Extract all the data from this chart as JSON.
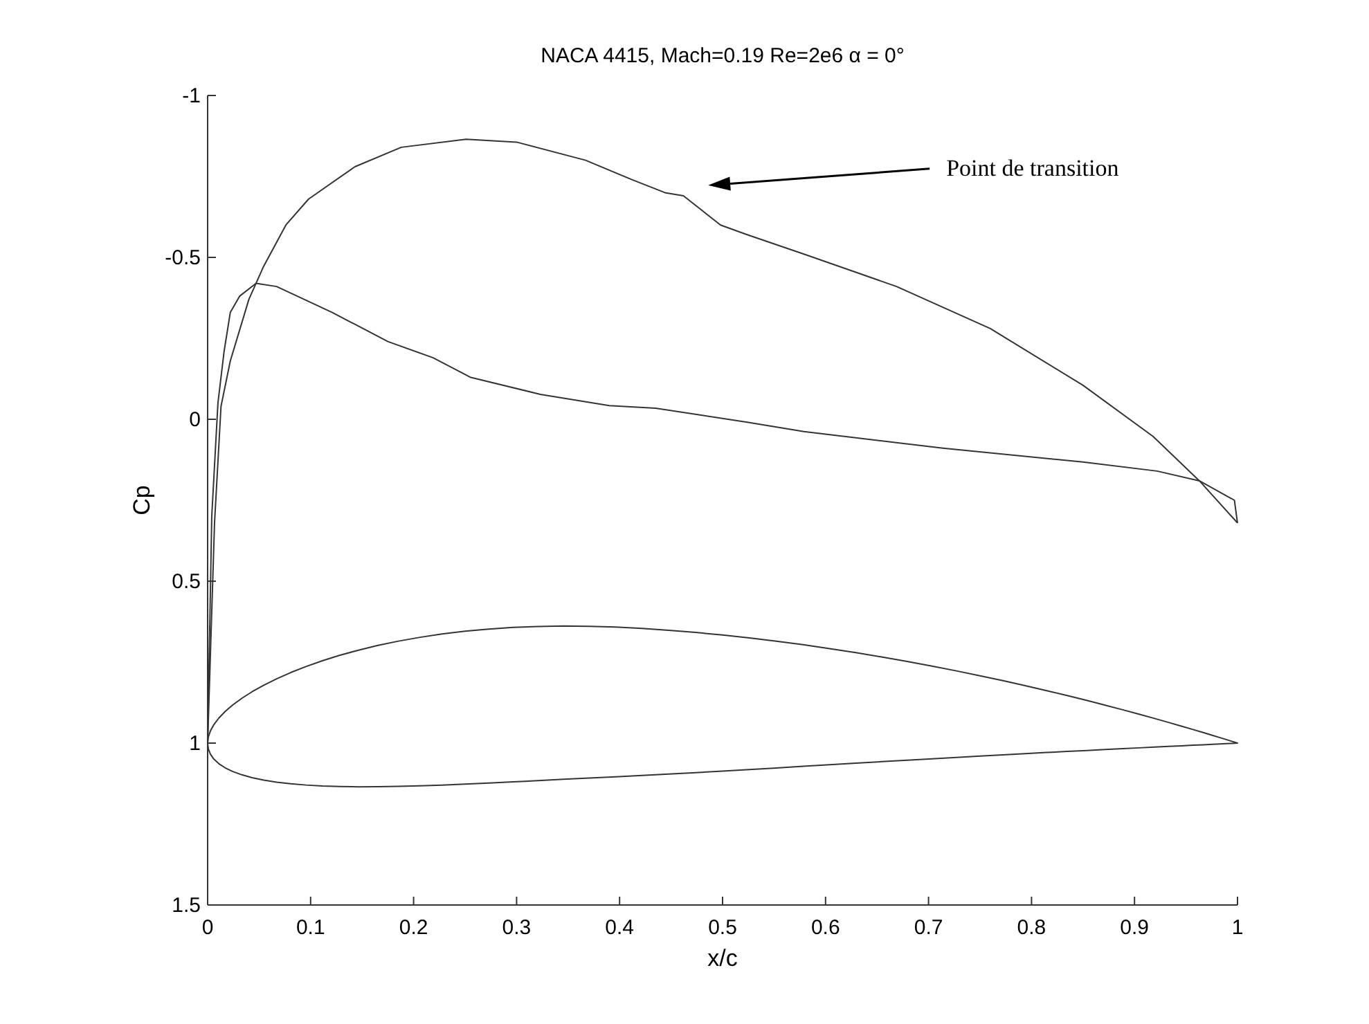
{
  "chart_data": {
    "type": "line",
    "title": "NACA 4415, Mach=0.19 Re=2e6 α = 0°",
    "xlabel": "x/c",
    "ylabel": "Cp",
    "xlim": [
      0,
      1
    ],
    "xticks": [
      0,
      0.1,
      0.2,
      0.3,
      0.4,
      0.5,
      0.6,
      0.7,
      0.8,
      0.9,
      1
    ],
    "ylim": [
      1.5,
      -1
    ],
    "yticks": [
      -1,
      -0.5,
      0,
      0.5,
      1,
      1.5
    ],
    "grid": false,
    "annotations": [
      "Point de transition"
    ],
    "series": [
      {
        "color": "#333333",
        "x": [
          0,
          0.0067,
          0.013,
          0.022,
          0.04,
          0.054,
          0.076,
          0.098,
          0.143,
          0.188,
          0.251,
          0.3,
          0.367,
          0.412,
          0.444,
          0.462,
          0.498,
          0.524,
          0.579,
          0.669,
          0.76,
          0.85,
          0.918,
          0.963,
          1
        ],
        "values": [
          1,
          0.32,
          -0.04,
          -0.18,
          -0.37,
          -0.47,
          -0.6,
          -0.68,
          -0.78,
          -0.84,
          -0.865,
          -0.856,
          -0.8,
          -0.74,
          -0.7,
          -0.69,
          -0.6,
          -0.57,
          -0.51,
          -0.41,
          -0.28,
          -0.105,
          0.053,
          0.19,
          0.32
        ]
      },
      {
        "color": "#333333",
        "x": [
          0,
          0.004,
          0.01,
          0.016,
          0.022,
          0.031,
          0.047,
          0.067,
          0.121,
          0.175,
          0.219,
          0.255,
          0.323,
          0.39,
          0.435,
          0.524,
          0.579,
          0.714,
          0.85,
          0.922,
          0.963,
          0.997,
          1
        ],
        "values": [
          1,
          0.3,
          -0.05,
          -0.21,
          -0.33,
          -0.38,
          -0.42,
          -0.41,
          -0.33,
          -0.24,
          -0.19,
          -0.13,
          -0.077,
          -0.042,
          -0.034,
          0.009,
          0.038,
          0.089,
          0.132,
          0.16,
          0.19,
          0.25,
          0.32
        ]
      }
    ]
  }
}
